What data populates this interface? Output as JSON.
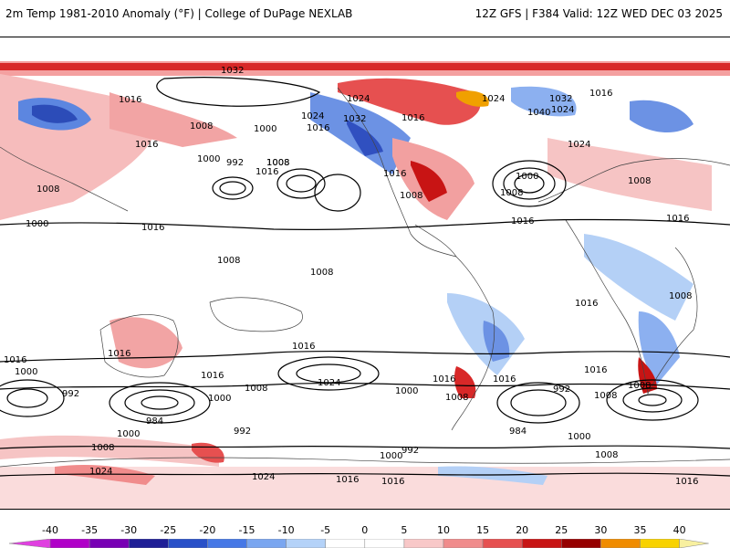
{
  "header": {
    "title_left": "2m Temp 1981-2010 Anomaly (°F) | College of DuPage NEXLAB",
    "title_right": "12Z GFS | F384 Valid: 12Z WED DEC 03 2025"
  },
  "map": {
    "projection": "global cylindrical",
    "pressure_labels": [
      "1032",
      "1024",
      "1016",
      "1008",
      "1016",
      "1008",
      "1000",
      "1000",
      "992",
      "1008",
      "1016",
      "1024",
      "1032",
      "1016",
      "1024",
      "1016",
      "1032",
      "1040",
      "1024",
      "1016",
      "1016",
      "1000",
      "1008",
      "1016",
      "1024",
      "1008",
      "1016",
      "1000",
      "1008",
      "1016",
      "1008",
      "1016",
      "1008",
      "1008",
      "1016",
      "1008",
      "1016",
      "1016",
      "1016",
      "1016",
      "1000",
      "1024",
      "1000",
      "984",
      "992",
      "1008",
      "1000",
      "992",
      "1008",
      "1016",
      "1024",
      "1016",
      "1008",
      "984",
      "992",
      "1000",
      "992",
      "1000",
      "1008",
      "1024",
      "1000",
      "1008",
      "1016",
      "1016",
      "1008",
      "1016"
    ]
  },
  "legend": {
    "tick_labels": [
      "-40",
      "-35",
      "-30",
      "-25",
      "-20",
      "-15",
      "-10",
      "-5",
      "0",
      "5",
      "10",
      "15",
      "20",
      "25",
      "30",
      "35",
      "40"
    ],
    "colors": [
      "#e040e0",
      "#b000c8",
      "#7800b4",
      "#1e1e96",
      "#2850c8",
      "#4678e6",
      "#7aa6f0",
      "#b4d2f8",
      "#ffffff",
      "#ffffff",
      "#f8c8c8",
      "#f08c8c",
      "#e65050",
      "#c81414",
      "#960000",
      "#f08c00",
      "#f8d200",
      "#f8f0a0"
    ]
  }
}
